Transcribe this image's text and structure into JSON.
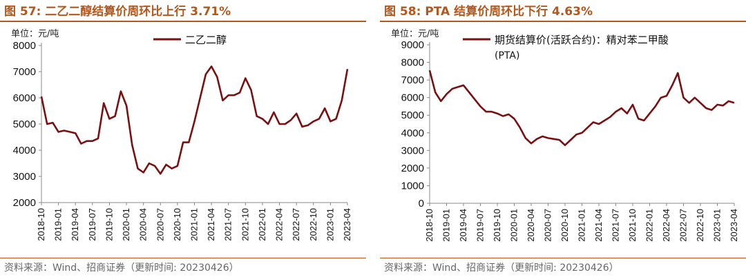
{
  "left": {
    "title": "图 57:  二乙二醇结算价周环比上行 3.71%",
    "unit": "单位：元/吨",
    "source": "资料来源：Wind、招商证券（更新时间: 20230426）"
  },
  "right": {
    "title": "图 58:  PTA 结算价周环比下行 4.63%",
    "unit": "单位：元/吨",
    "source": "资料来源：Wind、招商证券（更新时间: 20230426）"
  },
  "colors": {
    "title": "#B5561A",
    "series": "#7B0F0F",
    "axis": "#888888"
  },
  "chart_data": [
    {
      "type": "line",
      "title": "图 57:  二乙二醇结算价周环比上行 3.71%",
      "xlabel": "",
      "ylabel": "单位：元/吨",
      "ylim": [
        2000,
        8000
      ],
      "yticks": [
        2000,
        3000,
        4000,
        5000,
        6000,
        7000,
        8000
      ],
      "xticks": [
        "2018-10",
        "2019-01",
        "2019-04",
        "2019-07",
        "2019-10",
        "2020-01",
        "2020-04",
        "2020-07",
        "2020-10",
        "2021-01",
        "2021-04",
        "2021-07",
        "2021-10",
        "2022-01",
        "2022-04",
        "2022-07",
        "2022-10",
        "2023-01",
        "2023-04"
      ],
      "grid": false,
      "legend": "top-center",
      "series": [
        {
          "name": "二乙二醇",
          "points": [
            [
              "2018-10",
              6050
            ],
            [
              "2018-11",
              5000
            ],
            [
              "2018-12",
              5050
            ],
            [
              "2019-01",
              4700
            ],
            [
              "2019-02",
              4750
            ],
            [
              "2019-03",
              4700
            ],
            [
              "2019-04",
              4650
            ],
            [
              "2019-05",
              4250
            ],
            [
              "2019-06",
              4350
            ],
            [
              "2019-07",
              4350
            ],
            [
              "2019-08",
              4450
            ],
            [
              "2019-09",
              5800
            ],
            [
              "2019-10",
              5200
            ],
            [
              "2019-11",
              5300
            ],
            [
              "2019-12",
              6250
            ],
            [
              "2020-01",
              5700
            ],
            [
              "2020-02",
              4200
            ],
            [
              "2020-03",
              3300
            ],
            [
              "2020-04",
              3150
            ],
            [
              "2020-05",
              3500
            ],
            [
              "2020-06",
              3400
            ],
            [
              "2020-07",
              3100
            ],
            [
              "2020-08",
              3450
            ],
            [
              "2020-09",
              3300
            ],
            [
              "2020-10",
              3400
            ],
            [
              "2020-11",
              4300
            ],
            [
              "2020-12",
              4300
            ],
            [
              "2021-01",
              5100
            ],
            [
              "2021-02",
              6000
            ],
            [
              "2021-03",
              6900
            ],
            [
              "2021-04",
              7200
            ],
            [
              "2021-05",
              6800
            ],
            [
              "2021-06",
              5900
            ],
            [
              "2021-07",
              6100
            ],
            [
              "2021-08",
              6100
            ],
            [
              "2021-09",
              6200
            ],
            [
              "2021-10",
              6750
            ],
            [
              "2021-11",
              6300
            ],
            [
              "2021-12",
              5300
            ],
            [
              "2022-01",
              5200
            ],
            [
              "2022-02",
              5000
            ],
            [
              "2022-03",
              5450
            ],
            [
              "2022-04",
              5000
            ],
            [
              "2022-05",
              5000
            ],
            [
              "2022-06",
              5150
            ],
            [
              "2022-07",
              5400
            ],
            [
              "2022-08",
              4900
            ],
            [
              "2022-09",
              4950
            ],
            [
              "2022-10",
              5100
            ],
            [
              "2022-11",
              5200
            ],
            [
              "2022-12",
              5600
            ],
            [
              "2023-01",
              5100
            ],
            [
              "2023-02",
              5200
            ],
            [
              "2023-03",
              5900
            ],
            [
              "2023-04",
              7100
            ]
          ]
        }
      ]
    },
    {
      "type": "line",
      "title": "图 58:  PTA 结算价周环比下行 4.63%",
      "xlabel": "",
      "ylabel": "单位：元/吨",
      "ylim": [
        0,
        9000
      ],
      "yticks": [
        0,
        1000,
        2000,
        3000,
        4000,
        5000,
        6000,
        7000,
        8000,
        9000
      ],
      "xticks": [
        "2018-10",
        "2019-01",
        "2019-04",
        "2019-07",
        "2019-10",
        "2020-01",
        "2020-04",
        "2020-07",
        "2020-10",
        "2021-01",
        "2021-04",
        "2021-07",
        "2021-10",
        "2022-01",
        "2022-04",
        "2022-07",
        "2022-10",
        "2023-01",
        "2023-04"
      ],
      "grid": false,
      "legend": "top-center",
      "series": [
        {
          "name": "期货结算价(活跃合约)：精对苯二甲酸",
          "name_line2": "(PTA)",
          "points": [
            [
              "2018-10",
              7550
            ],
            [
              "2018-11",
              6300
            ],
            [
              "2018-12",
              5800
            ],
            [
              "2019-01",
              6200
            ],
            [
              "2019-02",
              6500
            ],
            [
              "2019-03",
              6600
            ],
            [
              "2019-04",
              6700
            ],
            [
              "2019-05",
              6300
            ],
            [
              "2019-06",
              5900
            ],
            [
              "2019-07",
              5500
            ],
            [
              "2019-08",
              5200
            ],
            [
              "2019-09",
              5200
            ],
            [
              "2019-10",
              5100
            ],
            [
              "2019-11",
              4950
            ],
            [
              "2019-12",
              5050
            ],
            [
              "2020-01",
              4800
            ],
            [
              "2020-02",
              4300
            ],
            [
              "2020-03",
              3700
            ],
            [
              "2020-04",
              3400
            ],
            [
              "2020-05",
              3650
            ],
            [
              "2020-06",
              3800
            ],
            [
              "2020-07",
              3700
            ],
            [
              "2020-08",
              3650
            ],
            [
              "2020-09",
              3600
            ],
            [
              "2020-10",
              3300
            ],
            [
              "2020-11",
              3600
            ],
            [
              "2020-12",
              3900
            ],
            [
              "2021-01",
              4000
            ],
            [
              "2021-02",
              4300
            ],
            [
              "2021-03",
              4600
            ],
            [
              "2021-04",
              4500
            ],
            [
              "2021-05",
              4700
            ],
            [
              "2021-06",
              4900
            ],
            [
              "2021-07",
              5200
            ],
            [
              "2021-08",
              5400
            ],
            [
              "2021-09",
              5100
            ],
            [
              "2021-10",
              5600
            ],
            [
              "2021-11",
              4800
            ],
            [
              "2021-12",
              4700
            ],
            [
              "2022-01",
              5100
            ],
            [
              "2022-02",
              5500
            ],
            [
              "2022-03",
              6000
            ],
            [
              "2022-04",
              6100
            ],
            [
              "2022-05",
              6700
            ],
            [
              "2022-06",
              7400
            ],
            [
              "2022-07",
              6000
            ],
            [
              "2022-08",
              5700
            ],
            [
              "2022-09",
              6000
            ],
            [
              "2022-10",
              5700
            ],
            [
              "2022-11",
              5400
            ],
            [
              "2022-12",
              5300
            ],
            [
              "2023-01",
              5600
            ],
            [
              "2023-02",
              5550
            ],
            [
              "2023-03",
              5800
            ],
            [
              "2023-04",
              5700
            ]
          ]
        }
      ]
    }
  ]
}
